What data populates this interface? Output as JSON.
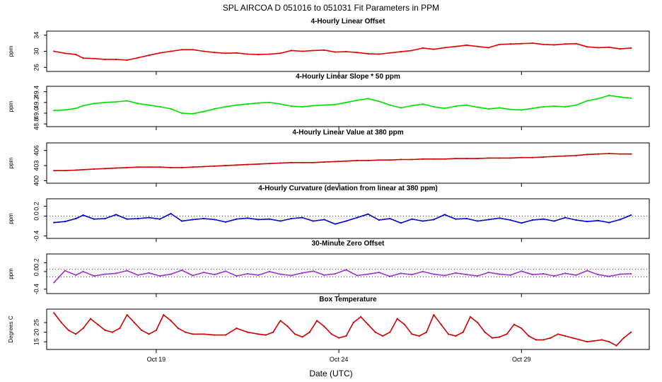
{
  "figure": {
    "title": "SPL   AIRCOA D   051016 to 051031   Fit Parameters in PPM",
    "xlabel": "Date (UTC)"
  },
  "chart_data": [
    {
      "type": "line",
      "title": "4-Hourly Linear Offset",
      "ylabel": "ppm",
      "ylim": [
        25,
        35
      ],
      "yticks": [
        26,
        30,
        34
      ],
      "ytick_labels": [
        "26",
        "30",
        "34"
      ],
      "xlim": [
        16.0,
        32.5
      ],
      "color": "#e00000",
      "x": [
        16.2,
        16.5,
        16.8,
        17.0,
        17.3,
        17.6,
        17.9,
        18.2,
        18.5,
        18.8,
        19.1,
        19.4,
        19.7,
        20.0,
        20.3,
        20.6,
        20.9,
        21.2,
        21.5,
        21.8,
        22.1,
        22.4,
        22.7,
        23.0,
        23.3,
        23.6,
        23.9,
        24.2,
        24.5,
        24.8,
        25.1,
        25.4,
        25.7,
        26.0,
        26.3,
        26.6,
        26.9,
        27.2,
        27.5,
        27.8,
        28.1,
        28.4,
        28.7,
        29.0,
        29.3,
        29.6,
        29.9,
        30.2,
        30.5,
        30.8,
        31.1,
        31.4,
        31.7,
        32.0
      ],
      "values": [
        30.0,
        29.5,
        29.2,
        28.3,
        28.2,
        28.0,
        28.0,
        27.8,
        28.4,
        29.0,
        29.6,
        30.0,
        30.4,
        30.4,
        30.0,
        29.7,
        29.5,
        29.6,
        29.3,
        29.2,
        29.3,
        29.5,
        30.2,
        30.0,
        30.2,
        30.3,
        29.8,
        29.9,
        29.7,
        29.4,
        29.3,
        29.6,
        29.9,
        30.2,
        30.8,
        30.5,
        30.9,
        31.2,
        31.5,
        31.2,
        30.9,
        31.7,
        31.8,
        31.9,
        32.0,
        31.7,
        31.6,
        31.8,
        31.9,
        31.1,
        30.9,
        31.0,
        30.6,
        30.8
      ]
    },
    {
      "type": "line",
      "title": "4-Hourly Linear Slope * 50 ppm",
      "ylabel": "ppm",
      "ylim": [
        48.75,
        49.5
      ],
      "yticks": [
        48.8,
        49.0,
        49.2,
        49.4
      ],
      "ytick_labels": [
        "48.8",
        "49.0",
        "49.2",
        "49.4"
      ],
      "xlim": [
        16.0,
        32.5
      ],
      "color": "#00e000",
      "x": [
        16.2,
        16.5,
        16.8,
        17.0,
        17.3,
        17.6,
        17.9,
        18.2,
        18.5,
        18.8,
        19.1,
        19.4,
        19.7,
        20.0,
        20.3,
        20.6,
        20.9,
        21.2,
        21.5,
        21.8,
        22.1,
        22.4,
        22.7,
        23.0,
        23.3,
        23.6,
        23.9,
        24.2,
        24.5,
        24.8,
        25.1,
        25.4,
        25.7,
        26.0,
        26.3,
        26.6,
        26.9,
        27.2,
        27.5,
        27.8,
        28.1,
        28.4,
        28.7,
        29.0,
        29.3,
        29.6,
        29.9,
        30.2,
        30.5,
        30.8,
        31.1,
        31.4,
        31.7,
        32.0
      ],
      "values": [
        49.05,
        49.06,
        49.09,
        49.14,
        49.18,
        49.2,
        49.21,
        49.23,
        49.18,
        49.15,
        49.12,
        49.08,
        49.0,
        48.99,
        49.03,
        49.08,
        49.12,
        49.15,
        49.17,
        49.19,
        49.2,
        49.17,
        49.13,
        49.12,
        49.14,
        49.15,
        49.16,
        49.2,
        49.24,
        49.27,
        49.22,
        49.15,
        49.1,
        49.14,
        49.17,
        49.12,
        49.09,
        49.13,
        49.15,
        49.11,
        49.08,
        49.1,
        49.07,
        49.06,
        49.09,
        49.12,
        49.13,
        49.12,
        49.15,
        49.23,
        49.27,
        49.33,
        49.3,
        49.28
      ]
    },
    {
      "type": "line",
      "title": "4-Hourly Linear Value at 380 ppm",
      "ylabel": "ppm",
      "ylim": [
        399.5,
        407.5
      ],
      "yticks": [
        400,
        403,
        406
      ],
      "ytick_labels": [
        "400",
        "403",
        "406"
      ],
      "xlim": [
        16.0,
        32.5
      ],
      "color": "#cc0000",
      "x": [
        16.2,
        16.5,
        16.8,
        17.0,
        17.3,
        17.6,
        17.9,
        18.2,
        18.5,
        18.8,
        19.1,
        19.4,
        19.7,
        20.0,
        20.3,
        20.6,
        20.9,
        21.2,
        21.5,
        21.8,
        22.1,
        22.4,
        22.7,
        23.0,
        23.3,
        23.6,
        23.9,
        24.2,
        24.5,
        24.8,
        25.1,
        25.4,
        25.7,
        26.0,
        26.3,
        26.6,
        26.9,
        27.2,
        27.5,
        27.8,
        28.1,
        28.4,
        28.7,
        29.0,
        29.3,
        29.6,
        29.9,
        30.2,
        30.5,
        30.8,
        31.1,
        31.4,
        31.7,
        32.0
      ],
      "values": [
        402.0,
        402.0,
        402.1,
        402.2,
        402.3,
        402.4,
        402.5,
        402.6,
        402.7,
        402.7,
        402.7,
        402.6,
        402.6,
        402.7,
        402.8,
        402.9,
        403.0,
        403.1,
        403.2,
        403.3,
        403.4,
        403.5,
        403.6,
        403.6,
        403.6,
        403.7,
        403.8,
        403.9,
        404.0,
        404.0,
        404.1,
        404.1,
        404.2,
        404.2,
        404.3,
        404.3,
        404.3,
        404.4,
        404.4,
        404.4,
        404.5,
        404.5,
        404.5,
        404.6,
        404.6,
        404.7,
        404.8,
        404.9,
        405.0,
        405.2,
        405.3,
        405.4,
        405.3,
        405.3
      ]
    },
    {
      "type": "line",
      "title": "4-Hourly Curvature (deviation from linear at 380 ppm)",
      "ylabel": "ppm",
      "ylim": [
        -0.45,
        0.35
      ],
      "yticks": [
        -0.4,
        0.0,
        0.2
      ],
      "ytick_labels": [
        "-0.4",
        "0.0",
        "0.2"
      ],
      "reference_line": 0.0,
      "xlim": [
        16.0,
        32.5
      ],
      "color": "#0000cc",
      "x": [
        16.2,
        16.5,
        16.8,
        17.0,
        17.3,
        17.6,
        17.9,
        18.2,
        18.5,
        18.8,
        19.1,
        19.4,
        19.7,
        20.0,
        20.3,
        20.6,
        20.9,
        21.2,
        21.5,
        21.8,
        22.1,
        22.4,
        22.7,
        23.0,
        23.3,
        23.6,
        23.9,
        24.2,
        24.5,
        24.8,
        25.1,
        25.4,
        25.7,
        26.0,
        26.3,
        26.6,
        26.9,
        27.2,
        27.5,
        27.8,
        28.1,
        28.4,
        28.7,
        29.0,
        29.3,
        29.6,
        29.9,
        30.2,
        30.5,
        30.8,
        31.1,
        31.4,
        31.7,
        32.0
      ],
      "values": [
        -0.13,
        -0.11,
        -0.05,
        0.02,
        -0.06,
        -0.05,
        0.03,
        -0.06,
        -0.05,
        -0.03,
        -0.06,
        0.05,
        -0.1,
        -0.07,
        -0.05,
        -0.07,
        -0.12,
        -0.06,
        -0.04,
        -0.07,
        -0.06,
        -0.1,
        -0.05,
        -0.03,
        -0.1,
        -0.07,
        -0.16,
        -0.1,
        -0.03,
        0.04,
        -0.08,
        -0.05,
        -0.14,
        -0.06,
        -0.1,
        -0.07,
        0.03,
        -0.06,
        -0.05,
        -0.1,
        -0.07,
        -0.04,
        -0.08,
        -0.14,
        -0.08,
        -0.06,
        -0.1,
        -0.03,
        -0.08,
        -0.11,
        -0.09,
        -0.13,
        -0.07,
        0.02
      ]
    },
    {
      "type": "line",
      "title": "30-Minute Zero Offset",
      "ylabel": "ppm",
      "ylim": [
        -0.5,
        0.4
      ],
      "yticks": [
        -0.4,
        0.0,
        0.2
      ],
      "ytick_labels": [
        "-0.4",
        "0.0",
        "0.2"
      ],
      "reference_lines": [
        0.05,
        -0.12
      ],
      "xlim": [
        16.0,
        32.5
      ],
      "color": "#9933cc",
      "x": [
        16.2,
        16.5,
        16.8,
        17.0,
        17.3,
        17.6,
        17.9,
        18.2,
        18.5,
        18.8,
        19.1,
        19.4,
        19.7,
        20.0,
        20.3,
        20.6,
        20.9,
        21.2,
        21.5,
        21.8,
        22.1,
        22.4,
        22.7,
        23.0,
        23.3,
        23.6,
        23.9,
        24.2,
        24.5,
        24.8,
        25.1,
        25.4,
        25.7,
        26.0,
        26.3,
        26.6,
        26.9,
        27.2,
        27.5,
        27.8,
        28.1,
        28.4,
        28.7,
        29.0,
        29.3,
        29.6,
        29.9,
        30.2,
        30.5,
        30.8,
        31.1,
        31.4,
        31.7,
        32.0
      ],
      "values": [
        -0.25,
        0.02,
        -0.08,
        0.0,
        -0.1,
        -0.06,
        -0.04,
        0.02,
        -0.08,
        -0.03,
        -0.1,
        -0.06,
        0.03,
        -0.09,
        -0.02,
        -0.07,
        0.01,
        -0.1,
        -0.05,
        -0.08,
        0.0,
        -0.06,
        -0.09,
        -0.03,
        0.01,
        -0.08,
        -0.05,
        0.04,
        -0.09,
        -0.06,
        -0.02,
        -0.11,
        -0.04,
        -0.07,
        0.0,
        -0.06,
        -0.09,
        -0.03,
        -0.07,
        -0.1,
        -0.02,
        -0.06,
        -0.08,
        0.01,
        -0.07,
        -0.05,
        -0.1,
        -0.04,
        -0.08,
        0.02,
        -0.07,
        -0.11,
        -0.06,
        -0.05
      ]
    },
    {
      "type": "line",
      "title": "Box Temperature",
      "ylabel": "Degrees C",
      "ylim": [
        11,
        32
      ],
      "yticks": [
        15,
        20,
        25
      ],
      "ytick_labels": [
        "15",
        "20",
        "25"
      ],
      "xlim": [
        16.0,
        32.5
      ],
      "color": "#cc0000",
      "x": [
        16.2,
        16.4,
        16.6,
        16.8,
        17.0,
        17.2,
        17.4,
        17.6,
        17.8,
        18.0,
        18.2,
        18.4,
        18.6,
        18.8,
        19.0,
        19.2,
        19.4,
        19.6,
        19.8,
        20.0,
        20.3,
        20.6,
        20.9,
        21.2,
        21.5,
        21.8,
        22.0,
        22.2,
        22.4,
        22.6,
        22.8,
        23.0,
        23.2,
        23.4,
        23.6,
        23.8,
        24.0,
        24.2,
        24.4,
        24.6,
        24.8,
        25.0,
        25.2,
        25.4,
        25.6,
        25.8,
        26.0,
        26.2,
        26.4,
        26.6,
        26.8,
        27.0,
        27.2,
        27.4,
        27.6,
        27.8,
        28.0,
        28.2,
        28.4,
        28.6,
        28.8,
        29.0,
        29.2,
        29.4,
        29.6,
        29.8,
        30.0,
        30.2,
        30.4,
        30.6,
        30.8,
        31.0,
        31.2,
        31.4,
        31.6,
        31.8,
        32.0
      ],
      "values": [
        30,
        25,
        21,
        19,
        22,
        27,
        24,
        21,
        20,
        22,
        29,
        25,
        21,
        19,
        21,
        29,
        26,
        22,
        20,
        19,
        19,
        18.5,
        18.5,
        22,
        20,
        19,
        18.5,
        20,
        26,
        23,
        19,
        17.5,
        20,
        26,
        23,
        19,
        17,
        18,
        25,
        28,
        24,
        20,
        18,
        20,
        27,
        24,
        19,
        18,
        20,
        29,
        24,
        19,
        18,
        20,
        28,
        25,
        20,
        17,
        17.5,
        19,
        24,
        22,
        18,
        16,
        16,
        17,
        19,
        18,
        17,
        16,
        15,
        15.5,
        16,
        15,
        13,
        17,
        20
      ]
    }
  ],
  "x_axis": {
    "ticks": [
      19,
      24,
      29
    ],
    "tick_labels": [
      "Oct 19",
      "Oct 24",
      "Oct 29"
    ]
  }
}
